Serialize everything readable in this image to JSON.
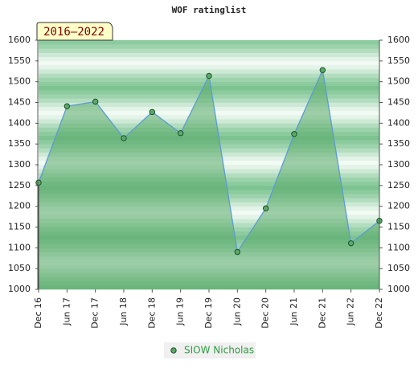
{
  "chart_data": {
    "type": "area",
    "title": "WOF ratinglist",
    "annotation": "2016–2022",
    "categories": [
      "Dec 16",
      "Jun 17",
      "Dec 17",
      "Jun 18",
      "Dec 18",
      "Jun 19",
      "Dec 19",
      "Jun 20",
      "Dec 20",
      "Jun 21",
      "Dec 21",
      "Jun 22",
      "Dec 22"
    ],
    "series": [
      {
        "name": "SIOW Nicholas",
        "color": "#5aaa6a",
        "values": [
          1257,
          1441,
          1452,
          1364,
          1427,
          1376,
          1514,
          1090,
          1195,
          1374,
          1528,
          1111,
          1165
        ]
      }
    ],
    "ylim": [
      1000,
      1600
    ],
    "yticks": [
      1000,
      1050,
      1100,
      1150,
      1200,
      1250,
      1300,
      1350,
      1400,
      1450,
      1500,
      1550,
      1600
    ],
    "y2lim": [
      1000,
      1600
    ],
    "y2ticks": [
      1000,
      1050,
      1100,
      1150,
      1200,
      1250,
      1300,
      1350,
      1400,
      1450,
      1500,
      1550,
      1600
    ],
    "line_color": "#5b9bd5",
    "legend": "bottom"
  }
}
